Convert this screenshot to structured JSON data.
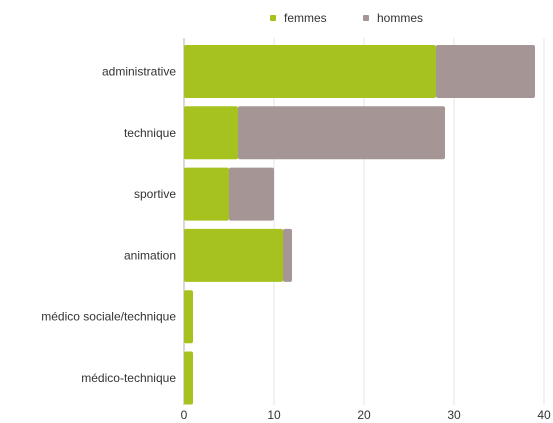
{
  "chart_data": {
    "type": "bar",
    "orientation": "horizontal",
    "stacked": true,
    "categories": [
      "administrative",
      "technique",
      "sportive",
      "animation",
      "médico sociale/technique",
      "médico-technique"
    ],
    "series": [
      {
        "name": "femmes",
        "values": [
          28,
          6,
          5,
          11,
          1,
          1
        ]
      },
      {
        "name": "hommes",
        "values": [
          11,
          23,
          5,
          1,
          0,
          0
        ]
      }
    ],
    "xlim": [
      0,
      40
    ],
    "xticks": [
      0,
      10,
      20,
      30,
      40
    ],
    "grid": "vertical",
    "legend": "top",
    "colors": {
      "femmes": "#a6c21e",
      "hommes": "#a69595",
      "grid": "#e6e6e6",
      "axis": "#bfbfbf"
    }
  }
}
